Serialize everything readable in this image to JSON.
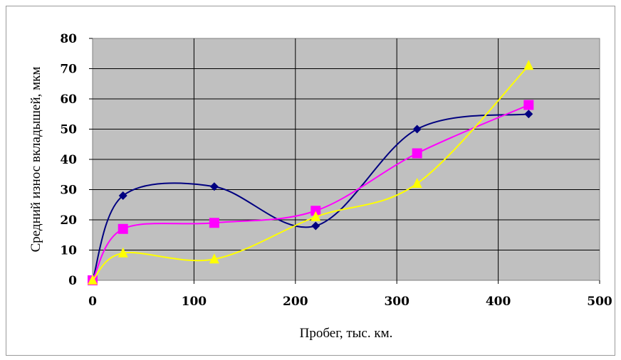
{
  "chart_data": {
    "type": "line",
    "title": "",
    "xlabel": "Пробег, тыс. км.",
    "ylabel": "Средний износ вкладышей, мкм",
    "xlim": [
      0,
      500
    ],
    "ylim": [
      0,
      80
    ],
    "xticks": [
      0,
      100,
      200,
      300,
      400,
      500
    ],
    "yticks": [
      0,
      10,
      20,
      30,
      40,
      50,
      60,
      70,
      80
    ],
    "grid": true,
    "smooth": true,
    "plot_background": "#c0c0c0",
    "series": [
      {
        "color": "#000080",
        "marker": "diamond",
        "points": [
          [
            0,
            0
          ],
          [
            30,
            28
          ],
          [
            120,
            31
          ],
          [
            220,
            18
          ],
          [
            320,
            50
          ],
          [
            430,
            55
          ]
        ]
      },
      {
        "color": "#ff00ff",
        "marker": "square",
        "points": [
          [
            0,
            0
          ],
          [
            30,
            17
          ],
          [
            120,
            19
          ],
          [
            220,
            23
          ],
          [
            320,
            42
          ],
          [
            430,
            58
          ]
        ]
      },
      {
        "color": "#ffff00",
        "marker": "triangle",
        "points": [
          [
            0,
            0
          ],
          [
            30,
            9
          ],
          [
            120,
            7
          ],
          [
            220,
            21
          ],
          [
            320,
            32
          ],
          [
            430,
            71
          ]
        ]
      }
    ]
  }
}
